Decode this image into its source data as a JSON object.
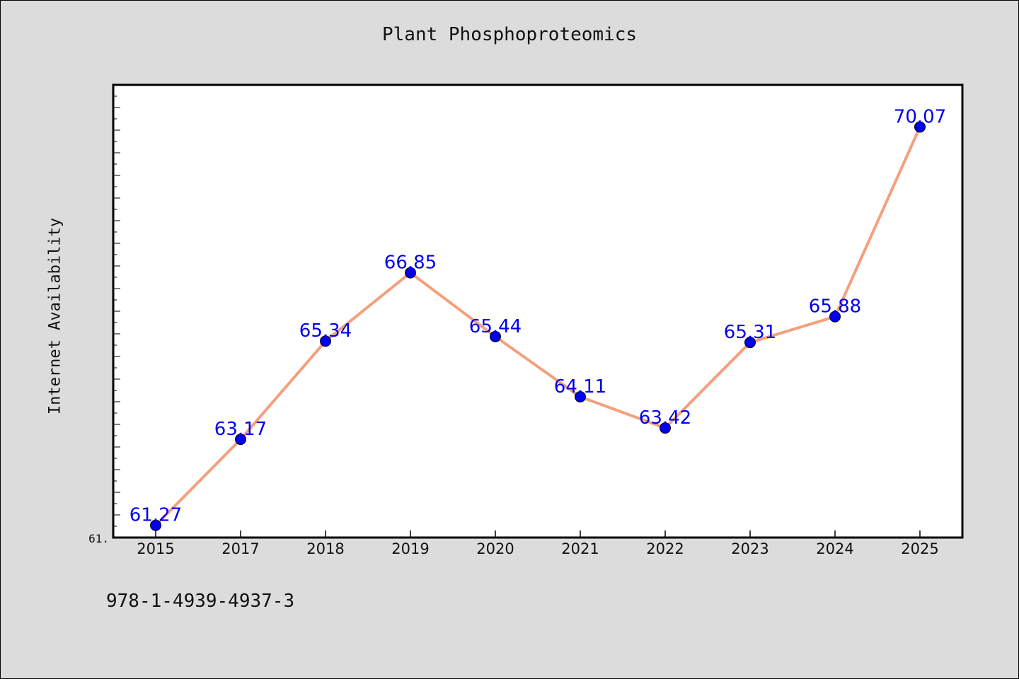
{
  "chart_data": {
    "type": "line",
    "title": "Plant Phosphoproteomics",
    "xlabel": "",
    "ylabel": "Internet Availability",
    "categories": [
      "2015",
      "2017",
      "2018",
      "2019",
      "2020",
      "2021",
      "2022",
      "2023",
      "2024",
      "2025"
    ],
    "series": [
      {
        "values": [
          61.27,
          63.17,
          65.34,
          66.85,
          65.44,
          64.11,
          63.42,
          65.31,
          65.88,
          70.07
        ],
        "data_labels": [
          "61.27",
          "63.17",
          "65.34",
          "66.85",
          "65.44",
          "64.11",
          "63.42",
          "65.31",
          "65.88",
          "70.07"
        ]
      }
    ],
    "ylim": [
      61.0,
      71.0
    ],
    "y_tick_label": "61.",
    "grid": false,
    "line_color": "#f4a07c",
    "marker_color": "#0000ee",
    "label_color": "#0000ee",
    "plot_background": "#ffffff",
    "page_background": "#dcdcdc"
  },
  "footer": {
    "code": "978-1-4939-4937-3"
  }
}
